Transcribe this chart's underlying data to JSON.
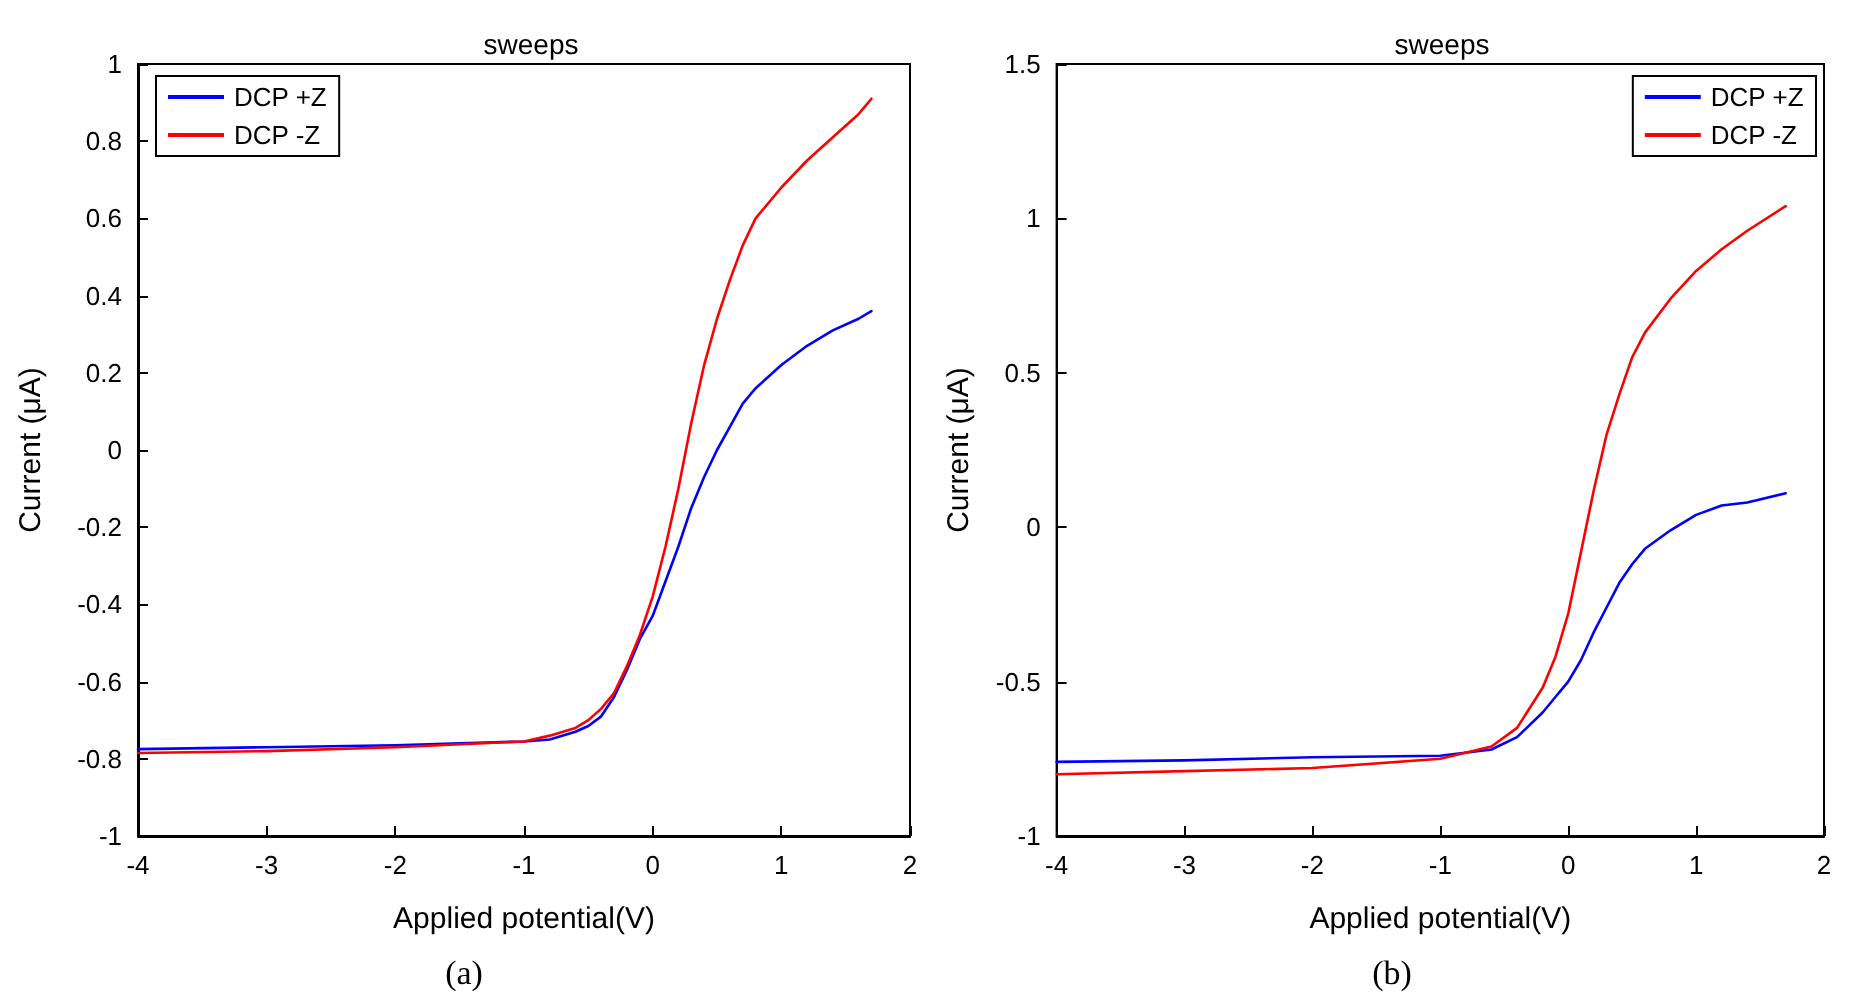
{
  "chart_data": [
    {
      "type": "line",
      "title": "sweeps",
      "xlabel": "Applied potential(V)",
      "ylabel": "Current (μA)",
      "annotations": [
        "(a)"
      ],
      "xlim": [
        -4,
        2
      ],
      "xticks": [
        -4,
        -3,
        -2,
        -1,
        0,
        1,
        2
      ],
      "ylim": [
        -1,
        1
      ],
      "yticks": [
        -1,
        -0.8,
        -0.6,
        -0.4,
        -0.2,
        0,
        0.2,
        0.4,
        0.6,
        0.8,
        1
      ],
      "grid": false,
      "legend": "top left",
      "marker": "none",
      "line_style": "solid",
      "x": [
        -4,
        -3,
        -2,
        -1,
        -0.8,
        -0.6,
        -0.5,
        -0.4,
        -0.3,
        -0.2,
        -0.1,
        0,
        0.1,
        0.2,
        0.3,
        0.4,
        0.5,
        0.6,
        0.7,
        0.8,
        1.0,
        1.2,
        1.4,
        1.6,
        1.7
      ],
      "series": [
        {
          "name": "DCP +Z",
          "color": "#0000ff",
          "values": [
            -0.775,
            -0.77,
            -0.765,
            -0.755,
            -0.75,
            -0.73,
            -0.715,
            -0.69,
            -0.64,
            -0.57,
            -0.49,
            -0.43,
            -0.34,
            -0.25,
            -0.15,
            -0.07,
            0.0,
            0.06,
            0.12,
            0.16,
            0.22,
            0.27,
            0.31,
            0.34,
            0.36
          ]
        },
        {
          "name": "DCP -Z",
          "color": "#ff0000",
          "values": [
            -0.785,
            -0.78,
            -0.77,
            -0.755,
            -0.74,
            -0.72,
            -0.7,
            -0.67,
            -0.63,
            -0.56,
            -0.48,
            -0.38,
            -0.25,
            -0.1,
            0.07,
            0.22,
            0.34,
            0.44,
            0.53,
            0.6,
            0.68,
            0.75,
            0.81,
            0.87,
            0.91
          ]
        }
      ]
    },
    {
      "type": "line",
      "title": "sweeps",
      "xlabel": "Applied potential(V)",
      "ylabel": "Current (μA)",
      "annotations": [
        "(b)"
      ],
      "xlim": [
        -4,
        2
      ],
      "xticks": [
        -4,
        -3,
        -2,
        -1,
        0,
        1,
        2
      ],
      "ylim": [
        -1,
        1.5
      ],
      "yticks": [
        -1,
        -0.5,
        0,
        0.5,
        1,
        1.5
      ],
      "grid": false,
      "legend": "top right",
      "marker": "none",
      "line_style": "solid",
      "x": [
        -4,
        -3,
        -2,
        -1,
        -0.6,
        -0.4,
        -0.2,
        -0.1,
        0,
        0.1,
        0.2,
        0.3,
        0.4,
        0.5,
        0.6,
        0.8,
        1.0,
        1.2,
        1.4,
        1.7
      ],
      "series": [
        {
          "name": "DCP +Z",
          "color": "#0000ff",
          "values": [
            -0.76,
            -0.755,
            -0.745,
            -0.74,
            -0.72,
            -0.68,
            -0.6,
            -0.55,
            -0.5,
            -0.43,
            -0.34,
            -0.26,
            -0.18,
            -0.12,
            -0.07,
            -0.01,
            0.04,
            0.07,
            0.08,
            0.11
          ]
        },
        {
          "name": "DCP -Z",
          "color": "#ff0000",
          "values": [
            -0.8,
            -0.79,
            -0.78,
            -0.75,
            -0.71,
            -0.65,
            -0.52,
            -0.42,
            -0.28,
            -0.08,
            0.12,
            0.3,
            0.43,
            0.55,
            0.63,
            0.74,
            0.83,
            0.9,
            0.96,
            1.04
          ]
        }
      ]
    }
  ]
}
